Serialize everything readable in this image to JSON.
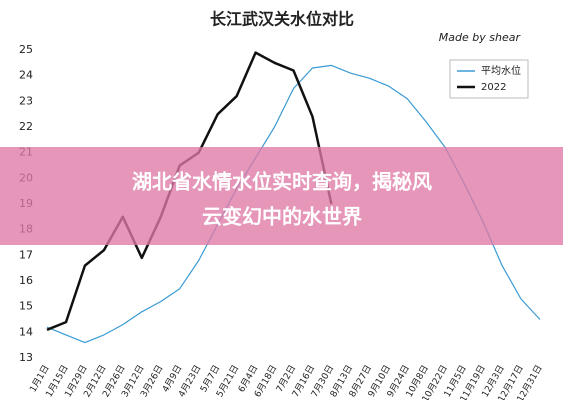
{
  "chart_data": {
    "type": "line",
    "title": "长江武汉关水位对比",
    "subtitle": "Made by shear",
    "categories": [
      "1月1日",
      "1月15日",
      "1月29日",
      "2月12日",
      "2月26日",
      "3月12日",
      "3月26日",
      "4月9日",
      "4月23日",
      "5月7日",
      "5月21日",
      "6月4日",
      "6月18日",
      "7月2日",
      "7月16日",
      "7月30日",
      "8月13日",
      "8月27日",
      "9月10日",
      "9月24日",
      "10月8日",
      "10月22日",
      "11月5日",
      "11月19日",
      "12月3日",
      "12月17日",
      "12月31日"
    ],
    "series": [
      {
        "name": "平均水位",
        "color": "#3a9bd5",
        "values": [
          14.2,
          13.9,
          13.6,
          13.9,
          14.3,
          14.8,
          15.2,
          15.7,
          16.8,
          18.2,
          19.6,
          20.8,
          22.0,
          23.5,
          24.3,
          24.4,
          24.1,
          23.9,
          23.6,
          23.1,
          22.2,
          21.2,
          19.8,
          18.3,
          16.6,
          15.3,
          14.5
        ]
      },
      {
        "name": "2022",
        "color": "#111111",
        "values": [
          14.1,
          14.4,
          16.6,
          17.2,
          18.5,
          16.9,
          18.5,
          20.5,
          21.0,
          22.5,
          23.2,
          24.9,
          24.5,
          24.2,
          22.4,
          19.0,
          null,
          null,
          null,
          null,
          null,
          null,
          null,
          null,
          null,
          null,
          null
        ]
      }
    ],
    "ylim": [
      13,
      25
    ],
    "yticks": [
      13,
      14,
      15,
      16,
      17,
      18,
      19,
      20,
      21,
      22,
      23,
      24,
      25
    ],
    "legend": "upper-right"
  },
  "banner": {
    "lines": [
      "湖北省水情水位实时查询，揭秘风",
      "云变幻中的水世界"
    ]
  }
}
